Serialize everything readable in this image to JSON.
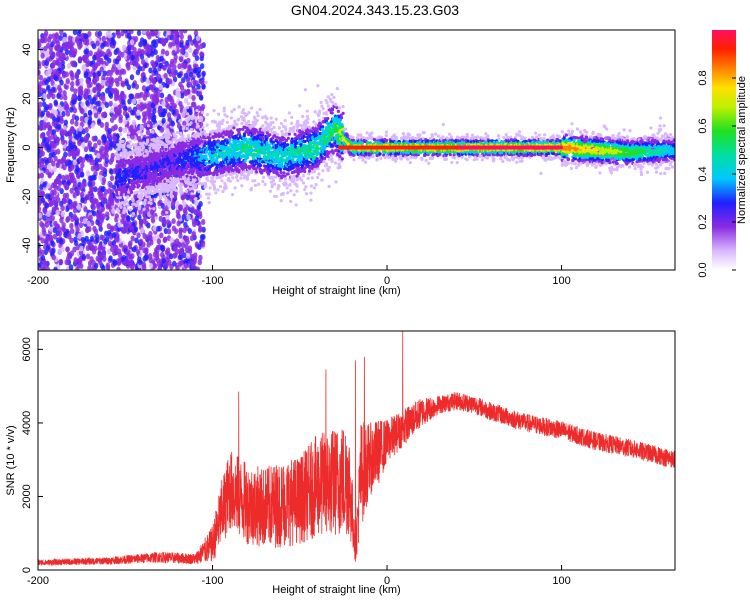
{
  "title": "GN04.2024.343.15.23.G03",
  "colors": {
    "snr_line": "#ee2b2b",
    "background": "#ffffff",
    "axis": "#000000"
  },
  "chart_data": [
    {
      "type": "heatmap",
      "xlabel": "Height of straight line (km)",
      "ylabel": "Frequency (Hz)",
      "xlim": [
        -200,
        165
      ],
      "ylim": [
        -50,
        48
      ],
      "xticks": [
        -200,
        -100,
        0,
        100
      ],
      "yticks": [
        -40,
        -20,
        0,
        20,
        40
      ],
      "colorbar": {
        "label": "Normalized spectral amplitude",
        "ticks": [
          "0.0",
          "0.2",
          "0.4",
          "0.6",
          "0.8"
        ],
        "range": [
          0,
          1
        ]
      },
      "ridge": {
        "description_points_x": [
          -150,
          -140,
          -120,
          -100,
          -80,
          -60,
          -40,
          -30,
          -20,
          0,
          50,
          100,
          140,
          165
        ],
        "description_points_y": [
          -12,
          -10,
          -5,
          -3,
          0,
          -4,
          0,
          8,
          0,
          0,
          0,
          0,
          -2,
          -1
        ],
        "amplitude": [
          0.25,
          0.2,
          0.2,
          0.35,
          0.45,
          0.4,
          0.45,
          0.5,
          0.8,
          0.8,
          0.85,
          0.85,
          0.55,
          0.35
        ]
      }
    },
    {
      "type": "line",
      "xlabel": "Height of straight line (km)",
      "ylabel": "SNR (10 * v/v)",
      "xlim": [
        -200,
        165
      ],
      "ylim": [
        0,
        6500
      ],
      "xticks": [
        -200,
        -100,
        0,
        100
      ],
      "yticks": [
        0,
        2000,
        4000,
        6000
      ],
      "envelope_x": [
        -200,
        -160,
        -130,
        -110,
        -100,
        -95,
        -90,
        -80,
        -70,
        -60,
        -50,
        -40,
        -30,
        -22,
        -18,
        -15,
        -10,
        -5,
        0,
        10,
        20,
        30,
        40,
        50,
        60,
        80,
        100,
        120,
        140,
        165
      ],
      "envelope_mean": [
        200,
        250,
        350,
        300,
        700,
        1500,
        2200,
        1800,
        1700,
        1800,
        1900,
        2300,
        2400,
        2500,
        600,
        2600,
        3000,
        3200,
        3500,
        3900,
        4300,
        4500,
        4600,
        4500,
        4300,
        4000,
        3800,
        3500,
        3300,
        3000
      ],
      "envelope_spread": [
        80,
        100,
        150,
        150,
        500,
        900,
        1100,
        1100,
        1100,
        1200,
        1200,
        1400,
        1500,
        1600,
        400,
        1500,
        1000,
        900,
        600,
        500,
        400,
        250,
        250,
        250,
        250,
        250,
        250,
        250,
        250,
        250
      ],
      "spikes": [
        {
          "x": -85,
          "y": 4850
        },
        {
          "x": -35,
          "y": 5450
        },
        {
          "x": -18,
          "y": 5700
        },
        {
          "x": -13,
          "y": 5800
        },
        {
          "x": 9,
          "y": 6500
        }
      ]
    }
  ]
}
